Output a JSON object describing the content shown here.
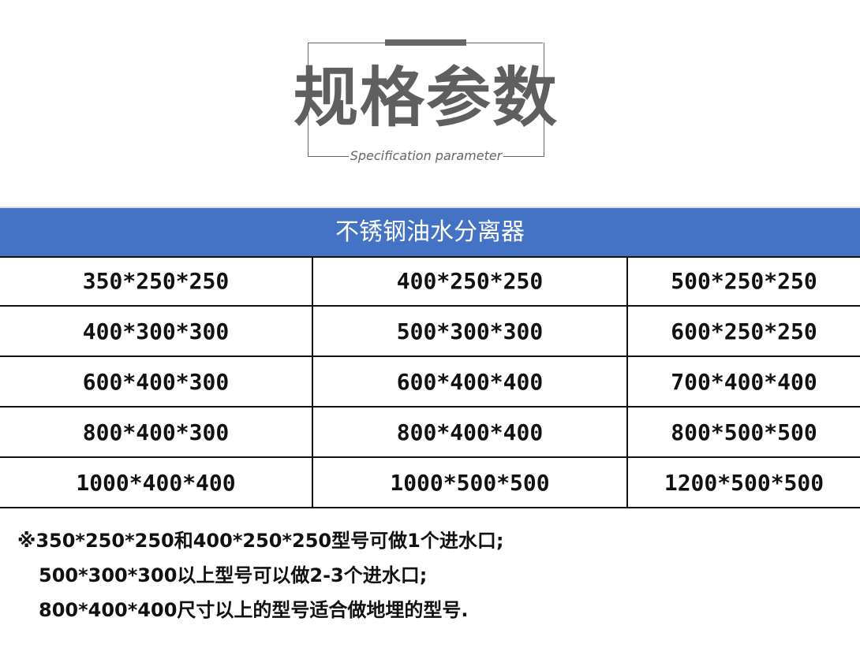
{
  "heading": {
    "title": "规格参数",
    "subtitle": "Specification parameter"
  },
  "table": {
    "header": "不锈钢油水分离器",
    "rows": [
      [
        "350*250*250",
        "400*250*250",
        "500*250*250"
      ],
      [
        "400*300*300",
        "500*300*300",
        "600*250*250"
      ],
      [
        "600*400*300",
        "600*400*400",
        "700*400*400"
      ],
      [
        "800*400*300",
        "800*400*400",
        "800*500*500"
      ],
      [
        "1000*400*400",
        "1000*500*500",
        "1200*500*500"
      ]
    ]
  },
  "notes": [
    "※350*250*250和400*250*250型号可做1个进水口;",
    "500*300*300以上型号可以做2-3个进水口;",
    "800*400*400尺寸以上的型号适合做地埋的型号."
  ],
  "colors": {
    "header_bg": "#4472c4",
    "title": "#5f5f5f"
  }
}
